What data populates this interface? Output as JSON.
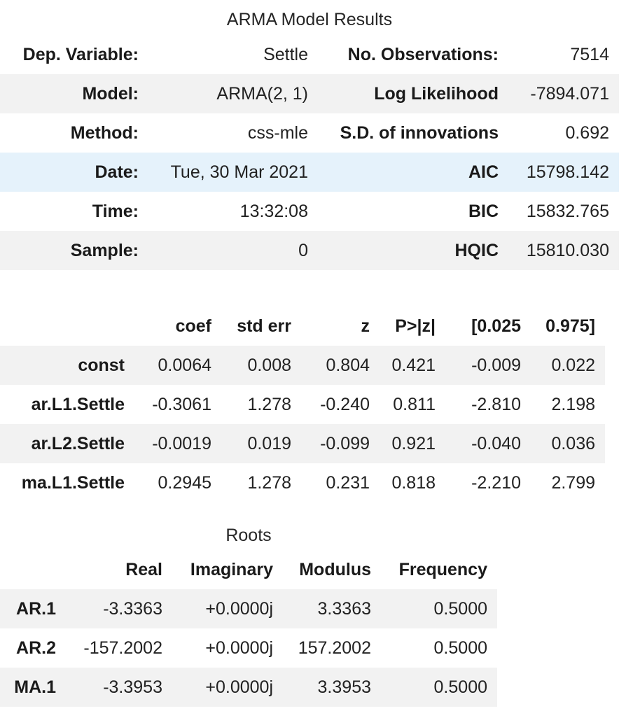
{
  "summary": {
    "caption": "ARMA Model Results",
    "rows": [
      {
        "label1": "Dep. Variable:",
        "value1": "Settle",
        "label2": "No. Observations:",
        "value2": "7514"
      },
      {
        "label1": "Model:",
        "value1": "ARMA(2, 1)",
        "label2": "Log Likelihood",
        "value2": "-7894.071"
      },
      {
        "label1": "Method:",
        "value1": "css-mle",
        "label2": "S.D. of innovations",
        "value2": "0.692"
      },
      {
        "label1": "Date:",
        "value1": "Tue, 30 Mar 2021",
        "label2": "AIC",
        "value2": "15798.142"
      },
      {
        "label1": "Time:",
        "value1": "13:32:08",
        "label2": "BIC",
        "value2": "15832.765"
      },
      {
        "label1": "Sample:",
        "value1": "0",
        "label2": "HQIC",
        "value2": "15810.030"
      }
    ]
  },
  "coefficients": {
    "headers": [
      "coef",
      "std err",
      "z",
      "P>|z|",
      "[0.025",
      "0.975]"
    ],
    "rows": [
      {
        "name": "const",
        "values": [
          "0.0064",
          "0.008",
          "0.804",
          "0.421",
          "-0.009",
          "0.022"
        ]
      },
      {
        "name": "ar.L1.Settle",
        "values": [
          "-0.3061",
          "1.278",
          "-0.240",
          "0.811",
          "-2.810",
          "2.198"
        ]
      },
      {
        "name": "ar.L2.Settle",
        "values": [
          "-0.0019",
          "0.019",
          "-0.099",
          "0.921",
          "-0.040",
          "0.036"
        ]
      },
      {
        "name": "ma.L1.Settle",
        "values": [
          "0.2945",
          "1.278",
          "0.231",
          "0.818",
          "-2.210",
          "2.799"
        ]
      }
    ]
  },
  "roots": {
    "caption": "Roots",
    "headers": [
      "Real",
      "Imaginary",
      "Modulus",
      "Frequency"
    ],
    "rows": [
      {
        "name": "AR.1",
        "values": [
          "-3.3363",
          "+0.0000j",
          "3.3363",
          "0.5000"
        ]
      },
      {
        "name": "AR.2",
        "values": [
          "-157.2002",
          "+0.0000j",
          "157.2002",
          "0.5000"
        ]
      },
      {
        "name": "MA.1",
        "values": [
          "-3.3953",
          "+0.0000j",
          "3.3953",
          "0.5000"
        ]
      }
    ]
  }
}
